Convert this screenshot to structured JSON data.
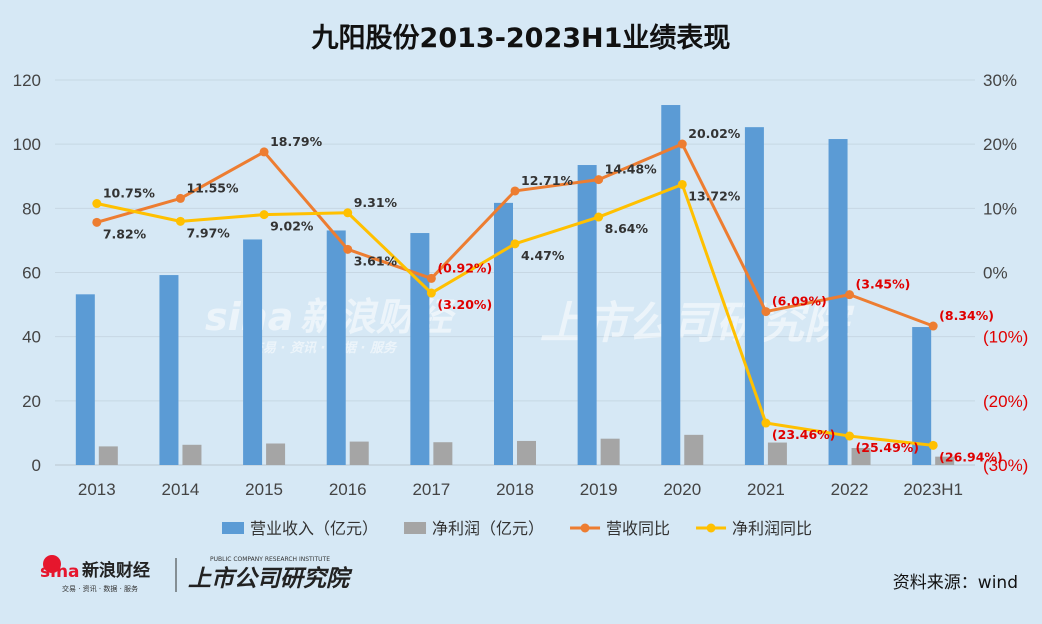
{
  "chart_data": {
    "type": "bar",
    "title": "九阳股份2013-2023H1业绩表现",
    "categories": [
      "2013",
      "2014",
      "2015",
      "2016",
      "2017",
      "2018",
      "2019",
      "2020",
      "2021",
      "2022",
      "2023H1"
    ],
    "y_left": {
      "min": 0,
      "max": 120,
      "ticks": [
        "0",
        "20",
        "40",
        "60",
        "80",
        "100",
        "120"
      ]
    },
    "y_right": {
      "min": -30,
      "max": 30,
      "ticks": [
        "(30%)",
        "(20%)",
        "(10%)",
        "0%",
        "10%",
        "20%",
        "30%"
      ]
    },
    "grid": true,
    "legend_position": "bottom",
    "series": [
      {
        "name": "营业收入（亿元）",
        "type": "bar",
        "color": "#5b9bd5",
        "values": [
          53.2,
          59.2,
          70.3,
          73.1,
          72.3,
          81.7,
          93.5,
          112.2,
          105.3,
          101.6,
          43.0
        ]
      },
      {
        "name": "净利润（亿元）",
        "type": "bar",
        "color": "#a5a5a5",
        "values": [
          5.8,
          6.3,
          6.7,
          7.3,
          7.1,
          7.5,
          8.2,
          9.4,
          7.0,
          5.3,
          2.6
        ]
      },
      {
        "name": "营收同比",
        "type": "line",
        "color": "#ed7d31",
        "values": [
          7.82,
          11.55,
          18.79,
          3.61,
          -0.92,
          12.71,
          14.48,
          20.02,
          -6.09,
          -3.45,
          -8.34
        ],
        "labels": [
          "7.82%",
          "11.55%",
          "18.79%",
          "3.61%",
          "(0.92%)",
          "12.71%",
          "14.48%",
          "20.02%",
          "(6.09%)",
          "(3.45%)",
          "(8.34%)"
        ]
      },
      {
        "name": "净利润同比",
        "type": "line",
        "color": "#ffc000",
        "values": [
          10.75,
          7.97,
          9.02,
          9.31,
          -3.2,
          4.47,
          8.64,
          13.72,
          -23.46,
          -25.49,
          -26.94
        ],
        "labels": [
          "10.75%",
          "7.97%",
          "9.02%",
          "9.31%",
          "(3.20%)",
          "4.47%",
          "8.64%",
          "13.72%",
          "(23.46%)",
          "(25.49%)",
          "(26.94%)"
        ]
      }
    ]
  },
  "source": "资料来源：wind",
  "watermarks": {
    "brand": "新浪财经",
    "brand_latin": "sina",
    "brand_sub": "交易 · 资讯 · 数据 · 服务",
    "section": "上市公司研究院",
    "section_en": "PUBLIC COMPANY RESEARCH INSTITUTE"
  },
  "colors": {
    "background": "#d6e8f5",
    "negative_label": "#e00000"
  }
}
